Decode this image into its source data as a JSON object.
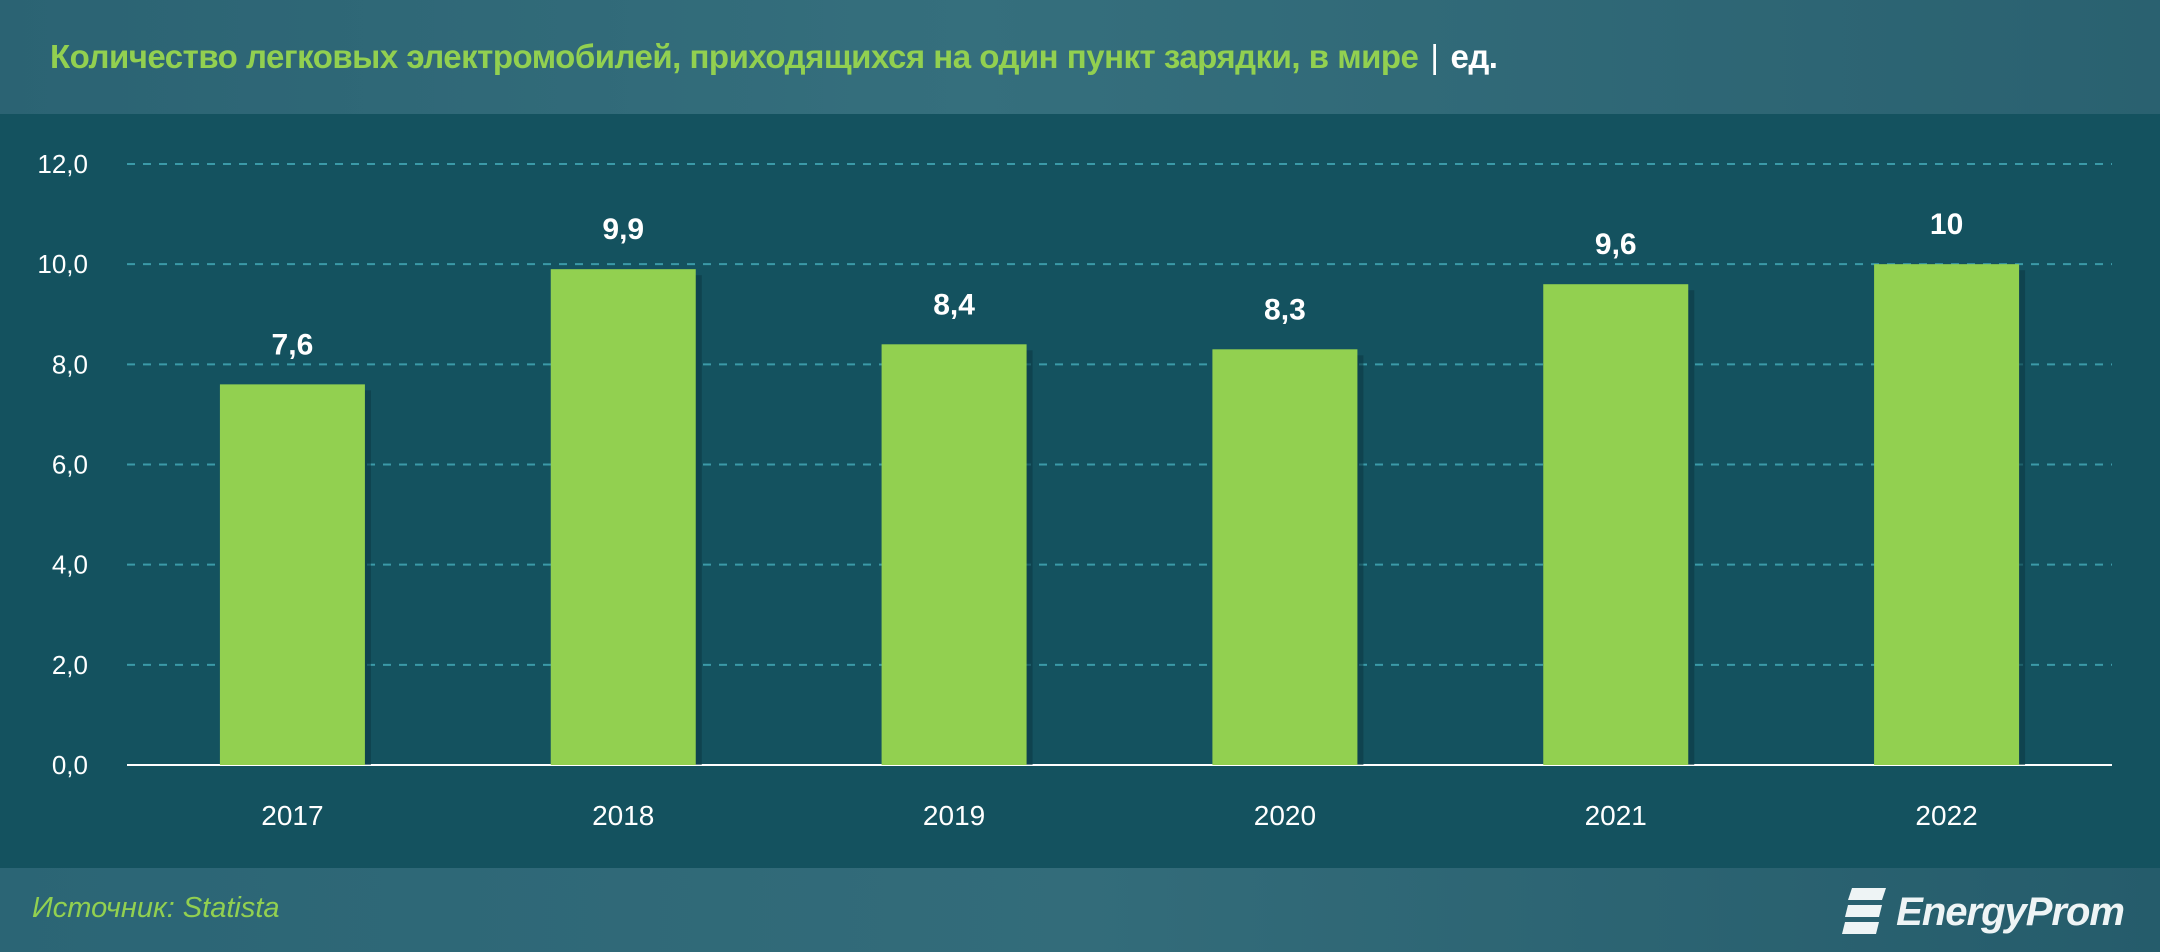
{
  "chart_data": {
    "type": "bar",
    "title": "Количество легковых электромобилей, приходящихся на один пункт зарядки, в мире",
    "unit": "ед.",
    "categories": [
      "2017",
      "2018",
      "2019",
      "2020",
      "2021",
      "2022"
    ],
    "values": [
      7.6,
      9.9,
      8.4,
      8.3,
      9.6,
      10
    ],
    "data_labels": [
      "7,6",
      "9,9",
      "8,4",
      "8,3",
      "9,6",
      "10"
    ],
    "ylim": [
      0,
      12
    ],
    "yticks": [
      "0,0",
      "2,0",
      "4,0",
      "6,0",
      "8,0",
      "10,0",
      "12,0"
    ],
    "grid": true,
    "xlabel": "",
    "ylabel": ""
  },
  "colors": {
    "bar": "#92d050",
    "background": "#14525f",
    "header": "#2f6878",
    "title": "#92d050",
    "grid": "#3b9aa8"
  },
  "footer": {
    "source": "Источник: Statista",
    "logo": "EnergyProm"
  }
}
